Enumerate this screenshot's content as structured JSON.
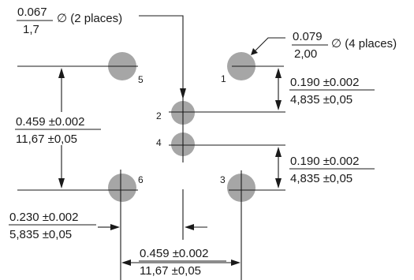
{
  "callouts": {
    "small_dia": {
      "top": "0.067",
      "bottom": "1,7",
      "suffix": "∅ (2 places)"
    },
    "large_dia": {
      "top": "0.079",
      "bottom": "2,00",
      "suffix": "∅ (4 places)"
    }
  },
  "dimensions": {
    "upper_right_pitch": {
      "top": "0.190 ±0.002",
      "bottom": "4,835 ±0,05"
    },
    "lower_right_pitch": {
      "top": "0.190 ±0.002",
      "bottom": "4,835 ±0,05"
    },
    "left_vertical": {
      "top": "0.459 ±0.002",
      "bottom": "11,67 ±0,05"
    },
    "bottom_left_offset": {
      "top": "0.230 ±0.002",
      "bottom": "5,835 ±0,05"
    },
    "bottom_horizontal": {
      "top": "0.459 ±0.002",
      "bottom": "11,67 ±0,05"
    }
  },
  "pads": {
    "p1": "1",
    "p2": "2",
    "p3": "3",
    "p4": "4",
    "p5": "5",
    "p6": "6"
  },
  "colors": {
    "pad_fill": "#a6a6a6",
    "line": "#1a1a1a"
  }
}
